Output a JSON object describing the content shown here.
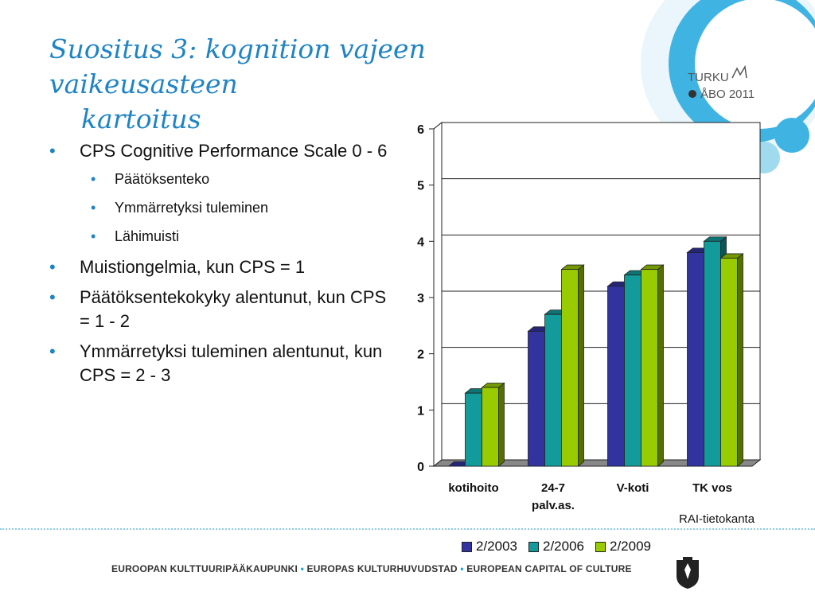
{
  "slide": {
    "title_line1": "Suositus 3: kognition vajeen vaikeusasteen",
    "title_line2": "kartoitus",
    "bullets": [
      {
        "level": 1,
        "text": "CPS Cognitive Performance Scale 0 - 6"
      },
      {
        "level": 2,
        "text": "Päätöksenteko"
      },
      {
        "level": 2,
        "text": "Ymmärretyksi tuleminen"
      },
      {
        "level": 2,
        "text": "Lähimuisti"
      },
      {
        "level": 1,
        "text": "Muistiongelmia, kun CPS = 1"
      },
      {
        "level": 1,
        "text": "Päätöksentekokyky alentunut, kun CPS = 1 - 2"
      },
      {
        "level": 1,
        "text": "Ymmärretyksi tuleminen alentunut, kun CPS = 2 - 3"
      }
    ],
    "source": "RAI-tietokanta",
    "footer": {
      "part1": "EUROOPAN KULTTUURIPÄÄKAUPUNKI",
      "part2": "EUROPAS KULTURHUVUDSTAD",
      "part3": "EUROPEAN CAPITAL OF CULTURE",
      "separator": "•"
    },
    "logo": {
      "line1": "TURKU",
      "line2": "ÅBO 2011"
    },
    "icons": [
      "turku-abo-2011-logo-icon",
      "turku-coat-of-arms-icon",
      "decorative-circles-icon"
    ],
    "colors": {
      "title": "#1f84c4",
      "accent": "#1aa6d6"
    }
  },
  "chart_data": {
    "type": "bar",
    "title": "",
    "xlabel": "",
    "ylabel": "",
    "categories": [
      "kotihoito",
      "24-7 palv.as.",
      "V-koti",
      "TK vos"
    ],
    "category_lines": [
      [
        "kotihoito"
      ],
      [
        "24-7",
        "palv.as."
      ],
      [
        "V-koti"
      ],
      [
        "TK vos"
      ]
    ],
    "series": [
      {
        "name": "2/2003",
        "values": [
          0,
          2.4,
          3.2,
          3.8
        ],
        "color": "#3333a0"
      },
      {
        "name": "2/2006",
        "values": [
          1.3,
          2.7,
          3.4,
          4.0
        ],
        "color": "#139a9a"
      },
      {
        "name": "2/2009",
        "values": [
          1.4,
          3.5,
          3.5,
          3.7
        ],
        "color": "#99cc00"
      }
    ],
    "ylim": [
      0,
      6
    ],
    "yticks": [
      0,
      1,
      2,
      3,
      4,
      5,
      6
    ],
    "grid": true,
    "legend_position": "bottom",
    "style": "3d"
  }
}
